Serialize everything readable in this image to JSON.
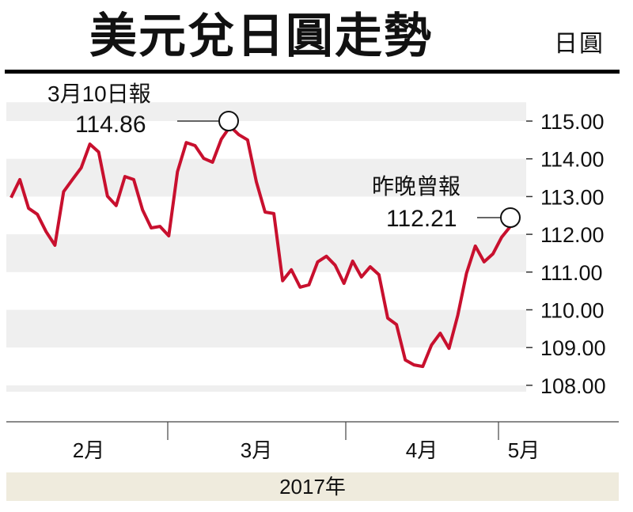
{
  "header": {
    "title": "美元兌日圓走勢",
    "unit": "日圓"
  },
  "chart_data": {
    "type": "line",
    "title": "美元兌日圓走勢",
    "ylabel": "日圓",
    "xlabel": "2017年",
    "ylim": [
      107.8,
      115.5
    ],
    "yticks": [
      "115.00",
      "114.00",
      "113.00",
      "112.00",
      "111.00",
      "110.00",
      "109.00",
      "108.00"
    ],
    "ytick_values": [
      115,
      114,
      113,
      112,
      111,
      110,
      109,
      108
    ],
    "months": [
      "2月",
      "3月",
      "4月",
      "5月"
    ],
    "year_label": "2017年",
    "grid": "alternating horizontal bands",
    "series": [
      {
        "name": "USD/JPY",
        "color": "#c8102e",
        "values": [
          112.97,
          113.45,
          112.69,
          112.53,
          112.07,
          111.71,
          113.13,
          113.45,
          113.76,
          114.39,
          114.18,
          113.01,
          112.76,
          113.53,
          113.45,
          112.65,
          112.17,
          112.21,
          111.96,
          113.66,
          114.43,
          114.35,
          114.01,
          113.91,
          114.52,
          114.86,
          114.64,
          114.5,
          113.39,
          112.59,
          112.55,
          110.77,
          111.06,
          110.6,
          110.66,
          111.27,
          111.42,
          111.18,
          110.7,
          111.29,
          110.87,
          111.14,
          110.93,
          109.78,
          109.61,
          108.67,
          108.54,
          108.5,
          109.07,
          109.38,
          108.98,
          109.86,
          110.97,
          111.69,
          111.27,
          111.48,
          111.92,
          112.21
        ]
      }
    ],
    "annotations": [
      {
        "label": "3月10日報",
        "value_text": "114.86",
        "index": 25
      },
      {
        "label": "昨晚曾報",
        "value_text": "112.21",
        "index": 57
      }
    ]
  }
}
